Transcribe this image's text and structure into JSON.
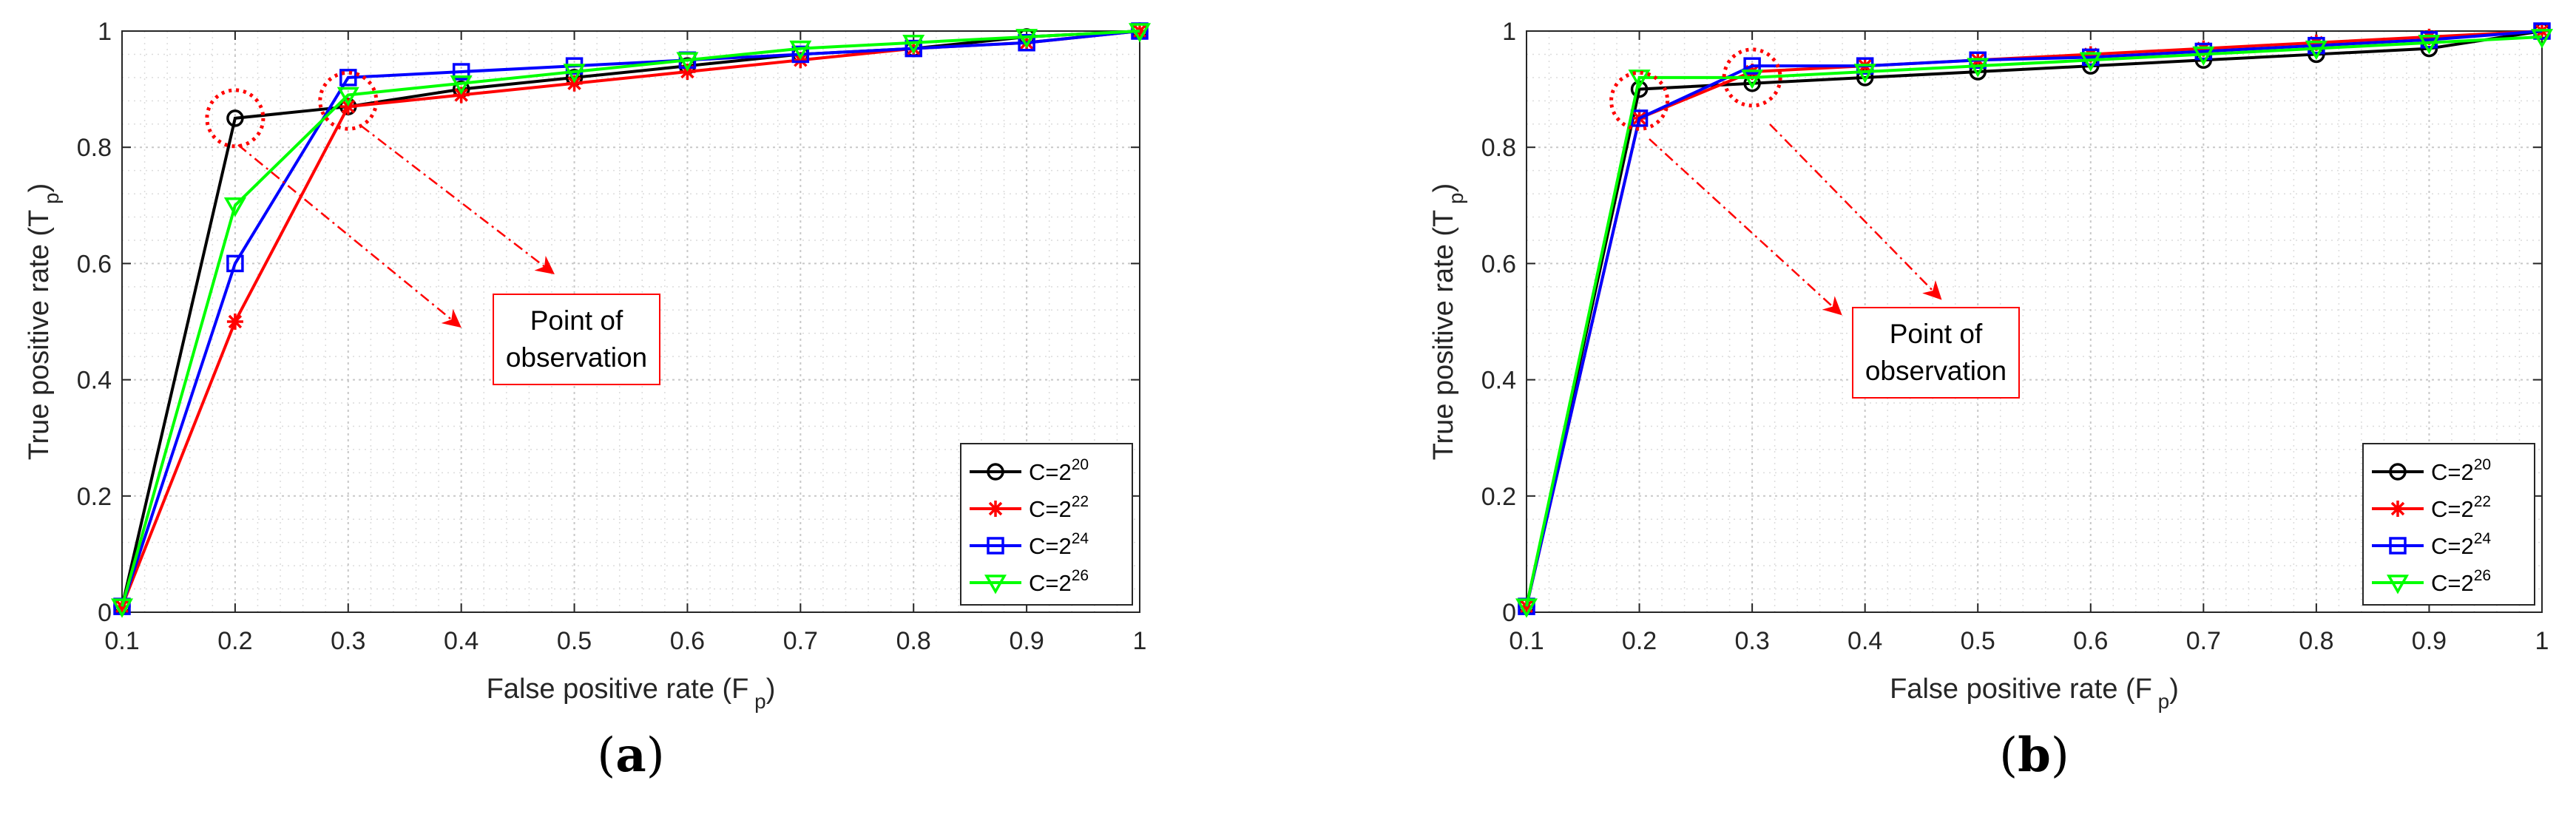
{
  "chart_data": [
    {
      "type": "line",
      "panel_label": "a",
      "xlabel": "False positive rate (F",
      "xlabel_sub": "p",
      "xlabel_close": ")",
      "ylabel": "True positive rate (T",
      "ylabel_sub": "p",
      "ylabel_close": ")",
      "xlim": [
        0.1,
        1
      ],
      "ylim": [
        0,
        1
      ],
      "x_ticks": [
        "0.1",
        "0.2",
        "0.3",
        "0.4",
        "0.5",
        "0.6",
        "0.7",
        "0.8",
        "0.9",
        "1"
      ],
      "y_ticks": [
        "0",
        "0.2",
        "0.4",
        "0.6",
        "0.8",
        "1"
      ],
      "grid": true,
      "legend_position": "bottom-right",
      "x": [
        0.1,
        0.2,
        0.3,
        0.4,
        0.5,
        0.6,
        0.7,
        0.8,
        0.9,
        1.0
      ],
      "series": [
        {
          "name": "C=2",
          "exponent": "20",
          "color": "#000000",
          "marker": "circle",
          "values": [
            0.01,
            0.85,
            0.87,
            0.9,
            0.92,
            0.94,
            0.96,
            0.97,
            0.99,
            1.0
          ]
        },
        {
          "name": "C=2",
          "exponent": "22",
          "color": "#ff0000",
          "marker": "asterisk",
          "values": [
            0.01,
            0.5,
            0.87,
            0.89,
            0.91,
            0.93,
            0.95,
            0.97,
            0.98,
            1.0
          ]
        },
        {
          "name": "C=2",
          "exponent": "24",
          "color": "#0000ff",
          "marker": "square",
          "values": [
            0.01,
            0.6,
            0.92,
            0.93,
            0.94,
            0.95,
            0.96,
            0.97,
            0.98,
            1.0
          ]
        },
        {
          "name": "C=2",
          "exponent": "26",
          "color": "#00ff00",
          "marker": "triangle-down",
          "values": [
            0.01,
            0.7,
            0.89,
            0.91,
            0.93,
            0.95,
            0.97,
            0.98,
            0.99,
            1.0
          ]
        }
      ],
      "annotation": {
        "line1": "Point of",
        "line2": "observation"
      },
      "observation_points": [
        {
          "x": 0.2,
          "y": 0.85
        },
        {
          "x": 0.3,
          "y": 0.88
        }
      ]
    },
    {
      "type": "line",
      "panel_label": "b",
      "xlabel": "False positive rate (F",
      "xlabel_sub": "p",
      "xlabel_close": ")",
      "ylabel": "True positive rate (T",
      "ylabel_sub": "p",
      "ylabel_close": ")",
      "xlim": [
        0.1,
        1
      ],
      "ylim": [
        0,
        1
      ],
      "x_ticks": [
        "0.1",
        "0.2",
        "0.3",
        "0.4",
        "0.5",
        "0.6",
        "0.7",
        "0.8",
        "0.9",
        "1"
      ],
      "y_ticks": [
        "0",
        "0.2",
        "0.4",
        "0.6",
        "0.8",
        "1"
      ],
      "grid": true,
      "legend_position": "bottom-right",
      "x": [
        0.1,
        0.2,
        0.3,
        0.4,
        0.5,
        0.6,
        0.7,
        0.8,
        0.9,
        1.0
      ],
      "series": [
        {
          "name": "C=2",
          "exponent": "20",
          "color": "#000000",
          "marker": "circle",
          "values": [
            0.01,
            0.9,
            0.91,
            0.92,
            0.93,
            0.94,
            0.95,
            0.96,
            0.97,
            1.0
          ]
        },
        {
          "name": "C=2",
          "exponent": "22",
          "color": "#ff0000",
          "marker": "asterisk",
          "values": [
            0.01,
            0.85,
            0.93,
            0.94,
            0.95,
            0.96,
            0.97,
            0.98,
            0.99,
            1.0
          ]
        },
        {
          "name": "C=2",
          "exponent": "24",
          "color": "#0000ff",
          "marker": "square",
          "values": [
            0.01,
            0.85,
            0.94,
            0.94,
            0.95,
            0.955,
            0.965,
            0.975,
            0.985,
            1.0
          ]
        },
        {
          "name": "C=2",
          "exponent": "26",
          "color": "#00ff00",
          "marker": "triangle-down",
          "values": [
            0.01,
            0.92,
            0.92,
            0.93,
            0.94,
            0.95,
            0.96,
            0.97,
            0.98,
            0.99
          ]
        }
      ],
      "annotation": {
        "line1": "Point of",
        "line2": "observation"
      },
      "observation_points": [
        {
          "x": 0.2,
          "y": 0.88
        },
        {
          "x": 0.3,
          "y": 0.92
        }
      ]
    }
  ]
}
